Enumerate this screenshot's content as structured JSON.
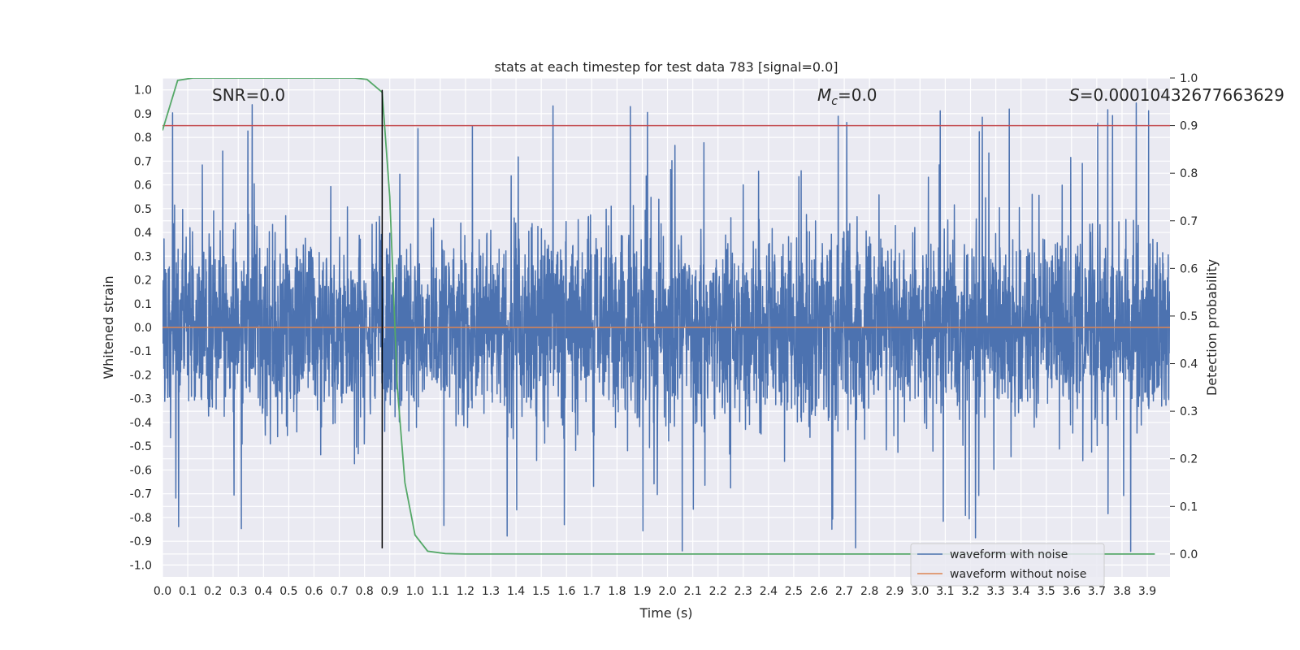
{
  "chart_data": {
    "type": "line",
    "title": "stats at each timestep for test data 783 [signal=0.0]",
    "xlabel": "Time (s)",
    "ylabel": "Whitened strain",
    "y2label": "Detection probability",
    "xlim": [
      0.0,
      3.99
    ],
    "ylim": [
      -1.05,
      1.05
    ],
    "y2lim": [
      -0.048,
      1.0
    ],
    "grid": true,
    "x_ticks": [
      "0.0",
      "0.1",
      "0.2",
      "0.3",
      "0.4",
      "0.5",
      "0.6",
      "0.7",
      "0.8",
      "0.9",
      "1.0",
      "1.1",
      "1.2",
      "1.3",
      "1.4",
      "1.5",
      "1.6",
      "1.7",
      "1.8",
      "1.9",
      "2.0",
      "2.1",
      "2.2",
      "2.3",
      "2.4",
      "2.5",
      "2.6",
      "2.7",
      "2.8",
      "2.9",
      "3.0",
      "3.1",
      "3.2",
      "3.3",
      "3.4",
      "3.5",
      "3.6",
      "3.7",
      "3.8",
      "3.9"
    ],
    "y_ticks": [
      "1.0",
      "0.9",
      "0.8",
      "0.7",
      "0.6",
      "0.5",
      "0.4",
      "0.3",
      "0.2",
      "0.1",
      "0.0",
      "-0.1",
      "-0.2",
      "-0.3",
      "-0.4",
      "-0.5",
      "-0.6",
      "-0.7",
      "-0.8",
      "-0.9",
      "-1.0"
    ],
    "y2_ticks": [
      "1.0",
      "0.9",
      "0.8",
      "0.7",
      "0.6",
      "0.5",
      "0.4",
      "0.3",
      "0.2",
      "0.1",
      "0.0"
    ],
    "annotations": {
      "snr": "SNR=0.0",
      "mc_symbol": "M",
      "mc_sub": "c",
      "mc_value": "=0.0",
      "s_symbol": "S",
      "s_value": "=0.00010432677663629"
    },
    "series": [
      {
        "name": "waveform with noise",
        "color": "#4c72b0",
        "axis": "left",
        "noise_seed": 783,
        "samples": 4000,
        "amplitude_sigma": 0.2,
        "range": [
          -1.0,
          1.0
        ]
      },
      {
        "name": "waveform without noise",
        "color": "#dd8452",
        "axis": "left",
        "x": [
          0.0,
          3.99
        ],
        "y": [
          0.0,
          0.0
        ]
      },
      {
        "name": "detection probability",
        "color": "#55a868",
        "axis": "right",
        "x": [
          0.0,
          0.06,
          0.12,
          0.2,
          0.3,
          0.5,
          0.7,
          0.76,
          0.81,
          0.87,
          0.9,
          0.93,
          0.96,
          1.0,
          1.05,
          1.12,
          1.2,
          1.5,
          2.0,
          3.0,
          3.93
        ],
        "y": [
          0.89,
          0.995,
          1.0,
          1.0,
          1.0,
          1.0,
          1.0,
          1.0,
          0.997,
          0.97,
          0.75,
          0.35,
          0.15,
          0.04,
          0.006,
          0.001,
          0.0,
          0.0,
          0.0,
          0.0,
          0.0
        ]
      }
    ],
    "threshold": {
      "value": 0.9,
      "axis": "right",
      "color": "#c44e52"
    },
    "marker_line": {
      "x": 0.87,
      "y_range": [
        -0.93,
        1.0
      ],
      "color": "#000000"
    },
    "legend": {
      "position": "bottom-right",
      "entries": [
        {
          "label": "waveform with noise",
          "color": "#4c72b0"
        },
        {
          "label": "waveform without noise",
          "color": "#dd8452"
        }
      ]
    },
    "colors": {
      "background": "#eaeaf2",
      "grid": "#ffffff",
      "text": "#262626"
    }
  }
}
